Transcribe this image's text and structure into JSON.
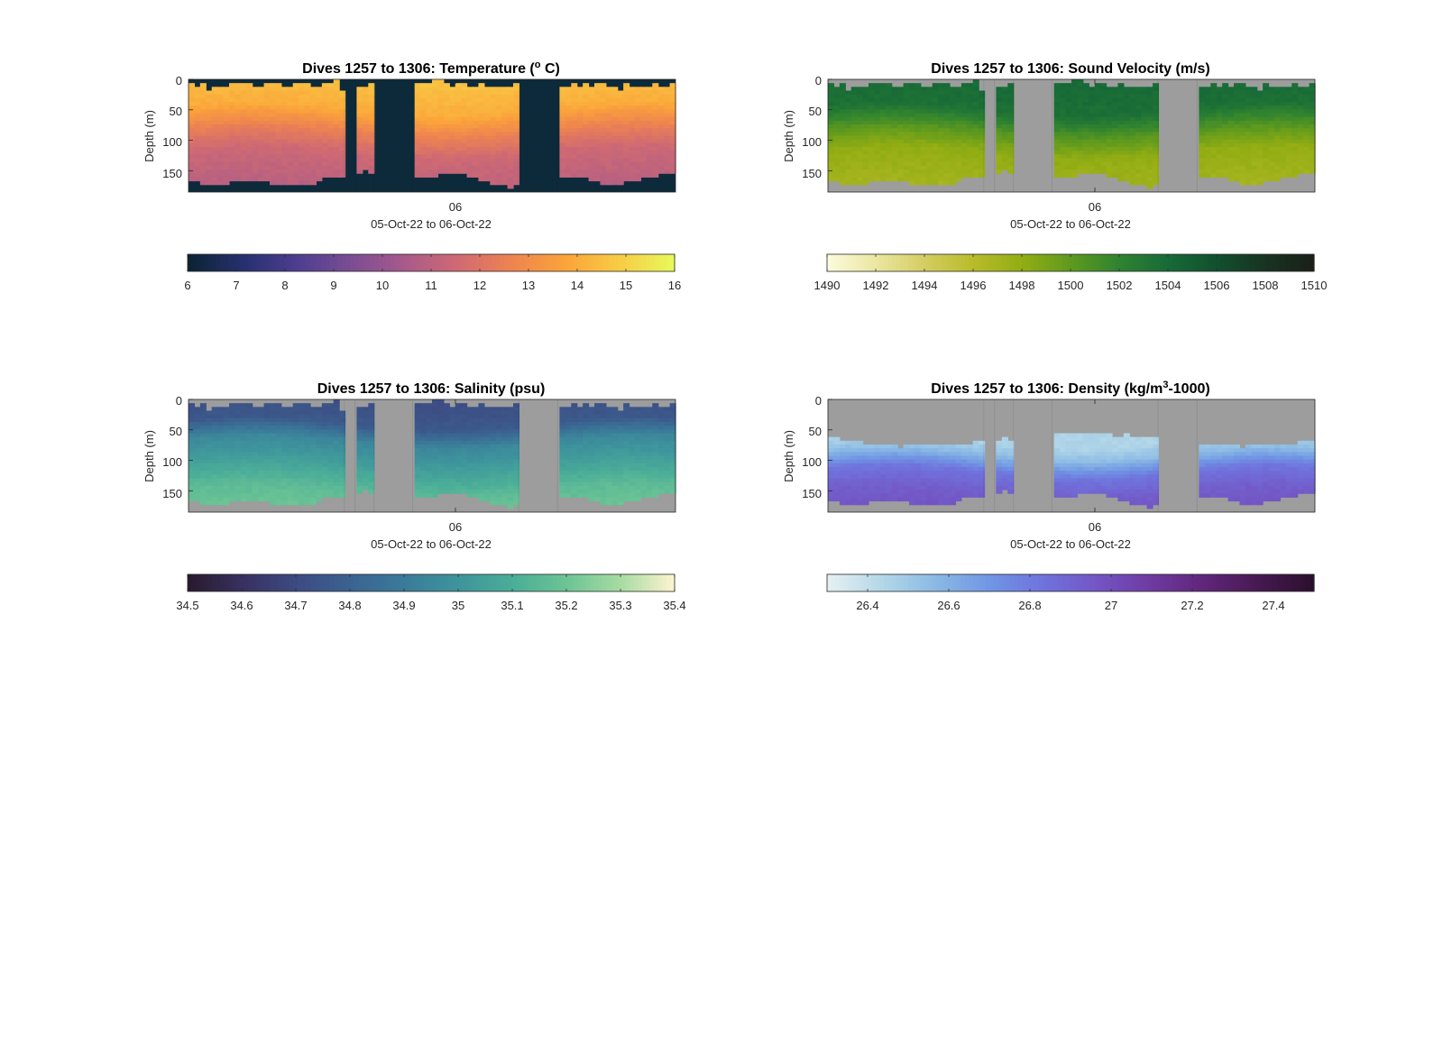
{
  "chart_data": [
    {
      "id": "temp",
      "type": "heatmap",
      "title_main": "Dives 1257 to 1306: Temperature (",
      "title_sup": "o",
      "title_tail": " C)",
      "ylabel": "Depth (m)",
      "yticks": [
        "0",
        "50",
        "100",
        "150"
      ],
      "ylim": [
        0,
        185
      ],
      "xtick": "06",
      "xlabel": "05-Oct-22 to 06-Oct-22",
      "nodata_color": "#0d2a3b",
      "clim": [
        6,
        16
      ],
      "colorbar_ticks": [
        "6",
        "7",
        "8",
        "9",
        "10",
        "11",
        "12",
        "13",
        "14",
        "15",
        "16"
      ],
      "colormap": [
        "#0b2233",
        "#25306d",
        "#4c3d8f",
        "#7a4d93",
        "#a65a8c",
        "#d06a72",
        "#ee8450",
        "#fba43a",
        "#f8cc45",
        "#e7fa5a"
      ],
      "profile": [
        [
          0,
          14.6
        ],
        [
          50,
          14.0
        ],
        [
          85,
          12.6
        ],
        [
          120,
          11.5
        ],
        [
          185,
          10.9
        ]
      ]
    },
    {
      "id": "sv",
      "type": "heatmap",
      "title_main": "Dives 1257 to 1306: Sound Velocity (m/s)",
      "title_sup": "",
      "title_tail": "",
      "ylabel": "Depth (m)",
      "yticks": [
        "0",
        "50",
        "100",
        "150"
      ],
      "ylim": [
        0,
        185
      ],
      "xtick": "06",
      "xlabel": "05-Oct-22 to 06-Oct-22",
      "nodata_color": "#9d9d9d",
      "clim": [
        1490,
        1510
      ],
      "colorbar_ticks": [
        "1490",
        "1492",
        "1494",
        "1496",
        "1498",
        "1500",
        "1502",
        "1504",
        "1506",
        "1508",
        "1510"
      ],
      "colormap": [
        "#fcfcdc",
        "#ebe6a2",
        "#d4cd62",
        "#b9bb2a",
        "#92ad13",
        "#5f9a1e",
        "#2f8330",
        "#176a37",
        "#11502e",
        "#183321",
        "#1b1f18"
      ],
      "profile": [
        [
          0,
          1504.0
        ],
        [
          50,
          1503.5
        ],
        [
          85,
          1500.5
        ],
        [
          120,
          1498.0
        ],
        [
          185,
          1497.0
        ]
      ]
    },
    {
      "id": "sal",
      "type": "heatmap",
      "title_main": "Dives 1257 to 1306: Salinity (psu)",
      "title_sup": "",
      "title_tail": "",
      "ylabel": "Depth (m)",
      "yticks": [
        "0",
        "50",
        "100",
        "150"
      ],
      "ylim": [
        0,
        185
      ],
      "xtick": "06",
      "xlabel": "05-Oct-22 to 06-Oct-22",
      "nodata_color": "#9d9d9d",
      "clim": [
        34.5,
        35.4
      ],
      "colorbar_ticks": [
        "34.5",
        "34.6",
        "34.7",
        "34.8",
        "34.9",
        "35",
        "35.1",
        "35.2",
        "35.3",
        "35.4"
      ],
      "colormap": [
        "#281a2c",
        "#38305f",
        "#3d4a82",
        "#3b6291",
        "#3a7b99",
        "#3e949c",
        "#4aad98",
        "#6cc495",
        "#a7dba2",
        "#fdf5cf"
      ],
      "profile": [
        [
          0,
          34.72
        ],
        [
          40,
          34.76
        ],
        [
          70,
          34.95
        ],
        [
          110,
          35.05
        ],
        [
          150,
          35.16
        ],
        [
          185,
          35.2
        ]
      ]
    },
    {
      "id": "den",
      "type": "heatmap",
      "title_main": "Dives 1257 to 1306: Density (kg/m",
      "title_sup": "3",
      "title_tail": "-1000)",
      "ylabel": "Depth (m)",
      "yticks": [
        "0",
        "50",
        "100",
        "150"
      ],
      "ylim": [
        0,
        185
      ],
      "xtick": "06",
      "xlabel": "05-Oct-22 to 06-Oct-22",
      "nodata_color": "#9d9d9d",
      "clim": [
        26.3,
        27.5
      ],
      "colorbar_ticks": [
        "26.4",
        "26.6",
        "26.8",
        "27",
        "27.2",
        "27.4"
      ],
      "colormap": [
        "#e6f1f1",
        "#b4d8e8",
        "#8ab9e4",
        "#7096e4",
        "#7072dc",
        "#7355c4",
        "#6e3aa0",
        "#5f2579",
        "#461951",
        "#2b0f2d"
      ],
      "profile": [
        [
          0,
          26.45
        ],
        [
          70,
          26.45
        ],
        [
          90,
          26.55
        ],
        [
          120,
          26.82
        ],
        [
          150,
          26.92
        ],
        [
          185,
          26.97
        ]
      ]
    }
  ]
}
